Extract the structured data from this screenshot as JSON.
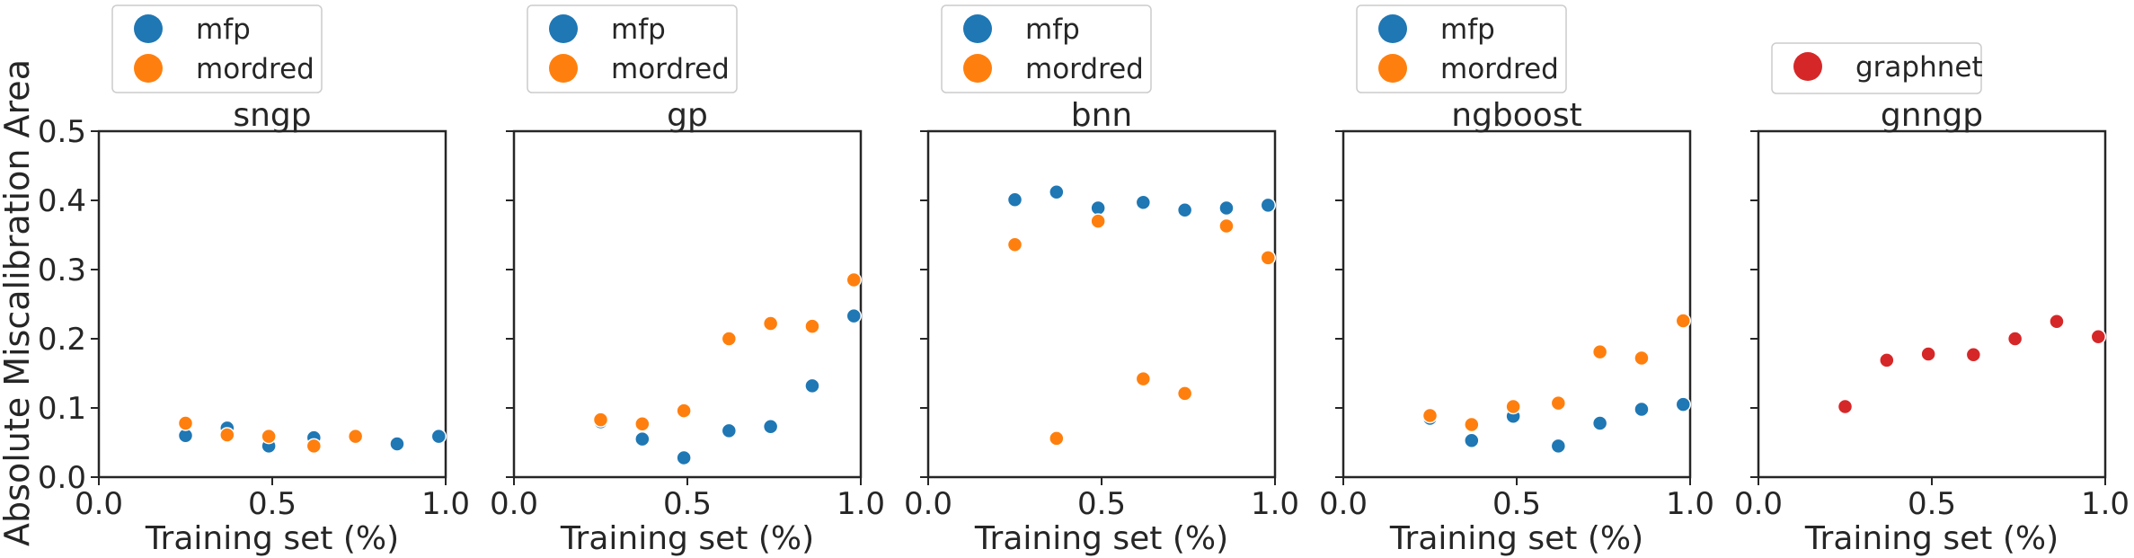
{
  "figure": {
    "ylabel": "Absolute Miscalibration Area",
    "colors": {
      "mfp": "#1f77b4",
      "mordred": "#ff7f0e",
      "graphnet": "#d62728"
    }
  },
  "chart_data": [
    {
      "type": "scatter",
      "title": "sngp",
      "xlabel": "Training set (%)",
      "ylabel": "Absolute Miscalibration Area",
      "xlim": [
        0.0,
        1.0
      ],
      "ylim": [
        0.0,
        0.5
      ],
      "xticks": [
        "0.0",
        "0.5",
        "1.0"
      ],
      "yticks": [
        "0.0",
        "0.1",
        "0.2",
        "0.3",
        "0.4",
        "0.5"
      ],
      "legend": "top-left, outside above plot",
      "series": [
        {
          "name": "mfp",
          "color": "#1f77b4",
          "x": [
            0.25,
            0.37,
            0.49,
            0.62,
            0.86,
            0.98
          ],
          "y": [
            0.06,
            0.071,
            0.045,
            0.057,
            0.048,
            0.059
          ]
        },
        {
          "name": "mordred",
          "color": "#ff7f0e",
          "x": [
            0.25,
            0.37,
            0.49,
            0.62,
            0.74
          ],
          "y": [
            0.078,
            0.061,
            0.059,
            0.045,
            0.059
          ]
        }
      ]
    },
    {
      "type": "scatter",
      "title": "gp",
      "xlabel": "Training set (%)",
      "xlim": [
        0.0,
        1.0
      ],
      "ylim": [
        0.0,
        0.5
      ],
      "xticks": [
        "0.0",
        "0.5",
        "1.0"
      ],
      "legend": "top-left, outside above plot",
      "series": [
        {
          "name": "mfp",
          "color": "#1f77b4",
          "x": [
            0.25,
            0.37,
            0.49,
            0.62,
            0.74,
            0.86,
            0.98
          ],
          "y": [
            0.08,
            0.055,
            0.028,
            0.067,
            0.073,
            0.132,
            0.233
          ]
        },
        {
          "name": "mordred",
          "color": "#ff7f0e",
          "x": [
            0.25,
            0.37,
            0.49,
            0.62,
            0.74,
            0.86,
            0.98
          ],
          "y": [
            0.083,
            0.077,
            0.096,
            0.2,
            0.222,
            0.218,
            0.285
          ]
        }
      ]
    },
    {
      "type": "scatter",
      "title": "bnn",
      "xlabel": "Training set (%)",
      "xlim": [
        0.0,
        1.0
      ],
      "ylim": [
        0.0,
        0.5
      ],
      "xticks": [
        "0.0",
        "0.5",
        "1.0"
      ],
      "legend": "top-left, outside above plot",
      "series": [
        {
          "name": "mfp",
          "color": "#1f77b4",
          "x": [
            0.25,
            0.37,
            0.49,
            0.62,
            0.74,
            0.86,
            0.98
          ],
          "y": [
            0.401,
            0.412,
            0.389,
            0.397,
            0.386,
            0.389,
            0.393
          ]
        },
        {
          "name": "mordred",
          "color": "#ff7f0e",
          "x": [
            0.25,
            0.37,
            0.49,
            0.62,
            0.74,
            0.86,
            0.98
          ],
          "y": [
            0.336,
            0.056,
            0.37,
            0.142,
            0.121,
            0.363,
            0.317
          ]
        }
      ]
    },
    {
      "type": "scatter",
      "title": "ngboost",
      "xlabel": "Training set (%)",
      "xlim": [
        0.0,
        1.0
      ],
      "ylim": [
        0.0,
        0.5
      ],
      "xticks": [
        "0.0",
        "0.5",
        "1.0"
      ],
      "legend": "top-left, outside above plot",
      "series": [
        {
          "name": "mfp",
          "color": "#1f77b4",
          "x": [
            0.25,
            0.37,
            0.49,
            0.62,
            0.74,
            0.86,
            0.98
          ],
          "y": [
            0.085,
            0.053,
            0.088,
            0.045,
            0.078,
            0.098,
            0.105
          ]
        },
        {
          "name": "mordred",
          "color": "#ff7f0e",
          "x": [
            0.25,
            0.37,
            0.49,
            0.62,
            0.74,
            0.86,
            0.98
          ],
          "y": [
            0.089,
            0.076,
            0.102,
            0.107,
            0.181,
            0.172,
            0.226
          ]
        }
      ]
    },
    {
      "type": "scatter",
      "title": "gnngp",
      "xlabel": "Training set (%)",
      "xlim": [
        0.0,
        1.0
      ],
      "ylim": [
        0.0,
        0.5
      ],
      "xticks": [
        "0.0",
        "0.5",
        "1.0"
      ],
      "legend": "top-right, outside above plot",
      "series": [
        {
          "name": "graphnet",
          "color": "#d62728",
          "x": [
            0.25,
            0.37,
            0.49,
            0.62,
            0.74,
            0.86,
            0.98
          ],
          "y": [
            0.102,
            0.169,
            0.178,
            0.177,
            0.2,
            0.225,
            0.203
          ]
        }
      ]
    }
  ]
}
